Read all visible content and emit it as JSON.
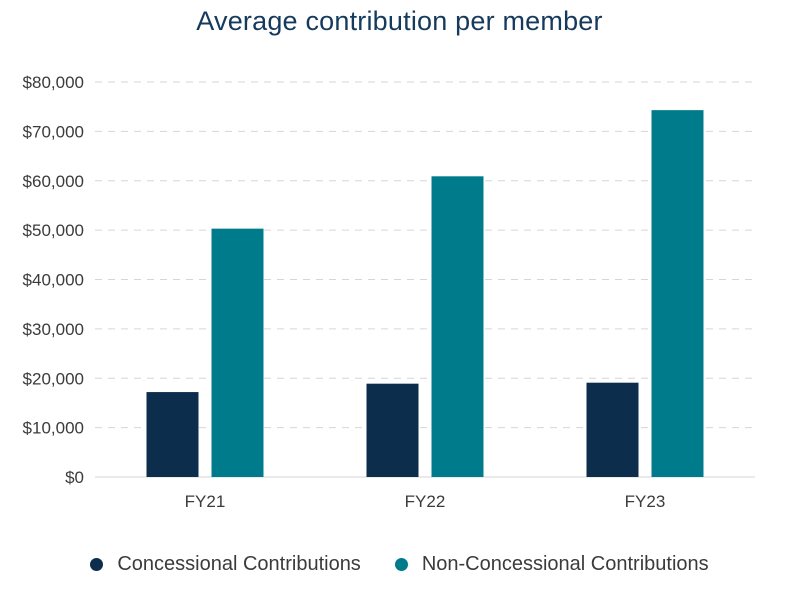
{
  "chart_data": {
    "type": "bar",
    "title": "Average contribution per member",
    "categories": [
      "FY21",
      "FY22",
      "FY23"
    ],
    "series": [
      {
        "name": "Concessional Contributions",
        "color": "#0d2d4d",
        "values": [
          17200,
          18900,
          19100
        ]
      },
      {
        "name": "Non-Concessional Contributions",
        "color": "#007b8c",
        "values": [
          50300,
          60900,
          74300
        ]
      }
    ],
    "ylim": [
      0,
      80000
    ],
    "yticks": [
      "$0",
      "$10,000",
      "$20,000",
      "$30,000",
      "$40,000",
      "$50,000",
      "$60,000",
      "$70,000",
      "$80,000"
    ],
    "grid": true,
    "legend": "bottom"
  }
}
